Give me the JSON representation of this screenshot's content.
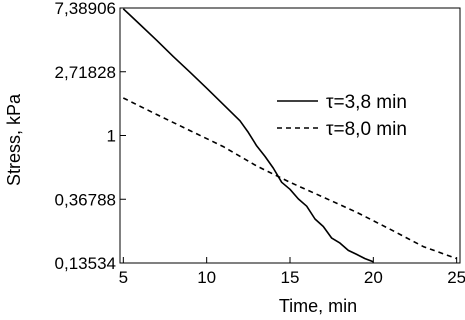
{
  "chart_data": {
    "type": "line",
    "title": "",
    "xlabel": "Time, min",
    "ylabel": "Stress, kPa",
    "xlim": [
      4.8,
      25.2
    ],
    "ylim": [
      0.13534,
      7.38906
    ],
    "y_scale": "log",
    "x_ticks": [
      5,
      10,
      15,
      20,
      25
    ],
    "x_tick_labels": [
      "5",
      "10",
      "15",
      "20",
      "25"
    ],
    "y_ticks": [
      0.13534,
      0.36788,
      1,
      2.71828,
      7.38906
    ],
    "y_tick_labels": [
      "0,13534",
      "0,36788",
      "1",
      "2,71828",
      "7,38906"
    ],
    "grid": false,
    "legend_position": "right",
    "series": [
      {
        "name": "τ=3,8 min",
        "line_style": "solid",
        "color": "#000000",
        "x": [
          5,
          6,
          7,
          8,
          9,
          10,
          11,
          12,
          12.5,
          13,
          13.5,
          14,
          14.5,
          15,
          15.5,
          16,
          16.5,
          17,
          17.5,
          18,
          18.5,
          19,
          19.5,
          20
        ],
        "y": [
          7.3,
          5.7,
          4.45,
          3.45,
          2.7,
          2.1,
          1.63,
          1.26,
          1.05,
          0.85,
          0.72,
          0.6,
          0.48,
          0.43,
          0.37,
          0.33,
          0.27,
          0.24,
          0.2,
          0.185,
          0.165,
          0.155,
          0.145,
          0.138
        ]
      },
      {
        "name": "τ=8,0 min",
        "line_style": "dashed",
        "color": "#000000",
        "x": [
          5,
          7,
          9,
          11,
          13,
          15,
          17,
          19,
          21,
          23,
          25
        ],
        "y": [
          1.8,
          1.39,
          1.08,
          0.84,
          0.62,
          0.48,
          0.38,
          0.3,
          0.23,
          0.175,
          0.145
        ]
      }
    ]
  }
}
